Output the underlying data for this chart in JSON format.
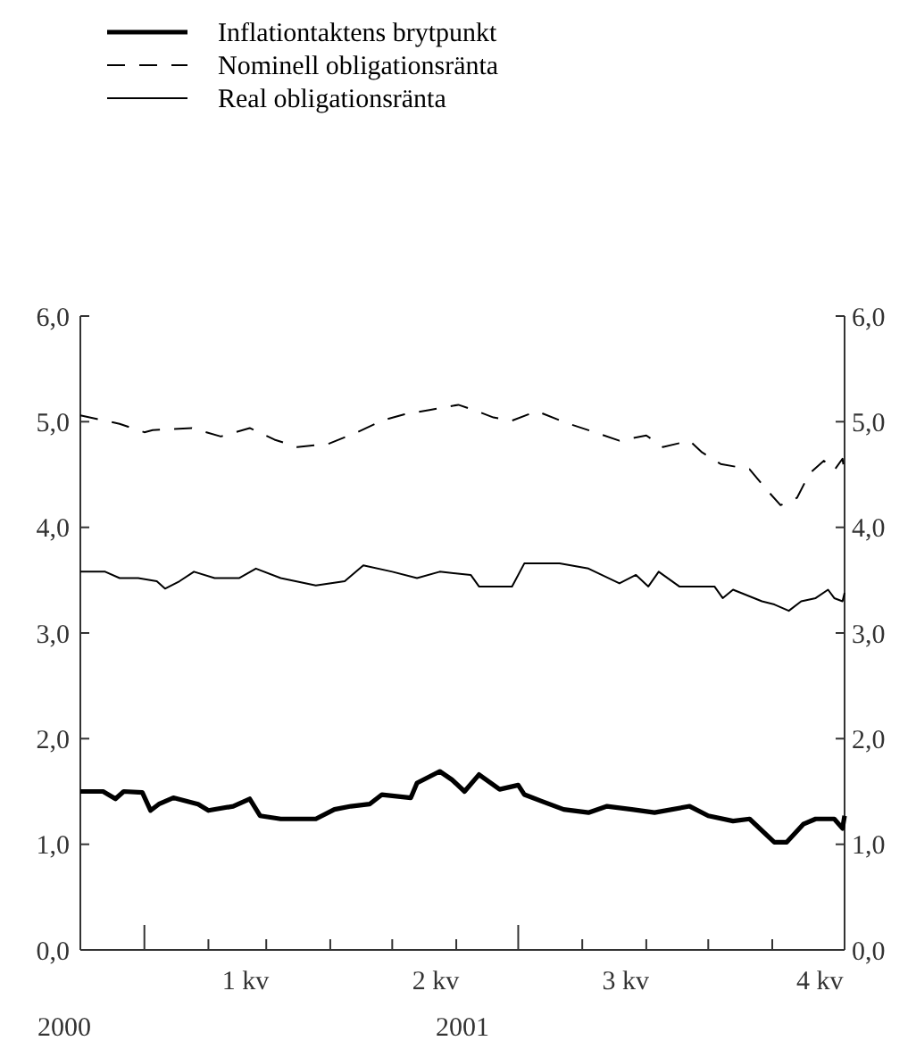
{
  "chart_data": {
    "type": "line",
    "legend": "top left",
    "ylim": [
      0,
      6
    ],
    "yticks": [
      {
        "value": 0,
        "label": "0,0"
      },
      {
        "value": 1,
        "label": "1,0"
      },
      {
        "value": 2,
        "label": "2,0"
      },
      {
        "value": 3,
        "label": "3,0"
      },
      {
        "value": 4,
        "label": "4,0"
      },
      {
        "value": 5,
        "label": "5,0"
      },
      {
        "value": 6,
        "label": "6,0"
      }
    ],
    "y2lim": [
      0,
      6
    ],
    "y2ticks": [
      {
        "value": 0,
        "label": "0,0"
      },
      {
        "value": 1,
        "label": "1,0"
      },
      {
        "value": 2,
        "label": "2,0"
      },
      {
        "value": 3,
        "label": "3,0"
      },
      {
        "value": 4,
        "label": "4,0"
      },
      {
        "value": 5,
        "label": "5,0"
      },
      {
        "value": 6,
        "label": "6,0"
      }
    ],
    "xlim": [
      "2000-12-01",
      "2001-12-06"
    ],
    "xticks": [
      {
        "value": "2001-01-01",
        "label": null
      },
      {
        "value": "2001-02-01",
        "label": null
      },
      {
        "value": "2001-03-01",
        "label": null
      },
      {
        "value": "2001-04-01",
        "label": null
      },
      {
        "value": "2001-05-01",
        "label": null
      },
      {
        "value": "2001-06-01",
        "label": null
      },
      {
        "value": "2001-07-01",
        "label": null
      },
      {
        "value": "2001-08-01",
        "label": null
      },
      {
        "value": "2001-09-01",
        "label": null
      },
      {
        "value": "2001-10-01",
        "label": null
      },
      {
        "value": "2001-11-01",
        "label": null
      },
      {
        "value": "2001-02-19",
        "label": "1 kv"
      },
      {
        "value": "2001-05-22",
        "label": "2 kv"
      },
      {
        "value": "2001-08-22",
        "label": "3 kv"
      },
      {
        "value": "2001-11-24",
        "label": "4 kv"
      }
    ],
    "annotations": [
      "2000",
      "2001"
    ],
    "series": [
      {
        "name": "Inflationtaktens brytpunkt",
        "color": "#000000",
        "line_style": "solid",
        "x": [
          "2000-12-01",
          "2000-12-12",
          "2000-12-18",
          "2000-12-22",
          "2000-12-31",
          "2001-01-04",
          "2001-01-08",
          "2001-01-15",
          "2001-01-27",
          "2001-02-01",
          "2001-02-13",
          "2001-02-21",
          "2001-02-26",
          "2001-03-08",
          "2001-03-25",
          "2001-04-03",
          "2001-04-11",
          "2001-04-20",
          "2001-04-26",
          "2001-05-10",
          "2001-05-13",
          "2001-05-24",
          "2001-05-30",
          "2001-06-05",
          "2001-06-12",
          "2001-06-22",
          "2001-07-01",
          "2001-07-04",
          "2001-07-12",
          "2001-07-23",
          "2001-08-04",
          "2001-08-13",
          "2001-08-25",
          "2001-09-05",
          "2001-09-22",
          "2001-10-01",
          "2001-10-13",
          "2001-10-21",
          "2001-11-02",
          "2001-11-08",
          "2001-11-16",
          "2001-11-22",
          "2001-12-01",
          "2001-12-05",
          "2001-12-06"
        ],
        "values": [
          1.5,
          1.5,
          1.43,
          1.5,
          1.49,
          1.32,
          1.38,
          1.44,
          1.38,
          1.32,
          1.36,
          1.43,
          1.27,
          1.24,
          1.24,
          1.33,
          1.36,
          1.38,
          1.47,
          1.44,
          1.58,
          1.69,
          1.61,
          1.5,
          1.66,
          1.52,
          1.56,
          1.47,
          1.41,
          1.33,
          1.3,
          1.36,
          1.33,
          1.3,
          1.36,
          1.27,
          1.22,
          1.24,
          1.02,
          1.02,
          1.19,
          1.24,
          1.24,
          1.15,
          1.27
        ]
      },
      {
        "name": "Nominell obligationsränta",
        "color": "#000000",
        "line_style": "dashed",
        "x": [
          "2000-12-01",
          "2000-12-20",
          "2001-01-01",
          "2001-01-05",
          "2001-01-24",
          "2001-02-07",
          "2001-02-21",
          "2001-03-05",
          "2001-03-16",
          "2001-03-31",
          "2001-04-14",
          "2001-04-26",
          "2001-05-07",
          "2001-05-19",
          "2001-06-02",
          "2001-06-11",
          "2001-06-19",
          "2001-06-28",
          "2001-07-10",
          "2001-07-24",
          "2001-08-07",
          "2001-08-19",
          "2001-09-01",
          "2001-09-09",
          "2001-09-22",
          "2001-09-28",
          "2001-10-07",
          "2001-10-21",
          "2001-10-30",
          "2001-11-05",
          "2001-11-13",
          "2001-11-19",
          "2001-11-26",
          "2001-12-01",
          "2001-12-05",
          "2001-12-06"
        ],
        "values": [
          5.06,
          4.98,
          4.9,
          4.92,
          4.94,
          4.86,
          4.94,
          4.83,
          4.76,
          4.79,
          4.9,
          5.01,
          5.07,
          5.11,
          5.16,
          5.1,
          5.04,
          5.01,
          5.1,
          4.99,
          4.9,
          4.82,
          4.87,
          4.76,
          4.82,
          4.71,
          4.6,
          4.55,
          4.34,
          4.21,
          4.28,
          4.51,
          4.63,
          4.54,
          4.65,
          4.51
        ]
      },
      {
        "name": "Real obligationsränta",
        "color": "#000000",
        "line_style": "solid",
        "x": [
          "2000-12-01",
          "2000-12-13",
          "2000-12-20",
          "2000-12-29",
          "2001-01-07",
          "2001-01-11",
          "2001-01-18",
          "2001-01-25",
          "2001-02-04",
          "2001-02-16",
          "2001-02-24",
          "2001-03-08",
          "2001-03-25",
          "2001-04-08",
          "2001-04-17",
          "2001-05-01",
          "2001-05-13",
          "2001-05-24",
          "2001-06-08",
          "2001-06-12",
          "2001-06-28",
          "2001-07-04",
          "2001-07-21",
          "2001-08-04",
          "2001-08-19",
          "2001-08-27",
          "2001-09-02",
          "2001-09-07",
          "2001-09-17",
          "2001-10-04",
          "2001-10-08",
          "2001-10-13",
          "2001-10-27",
          "2001-11-02",
          "2001-11-09",
          "2001-11-15",
          "2001-11-22",
          "2001-11-28",
          "2001-12-01",
          "2001-12-05",
          "2001-12-06"
        ],
        "values": [
          3.58,
          3.58,
          3.52,
          3.52,
          3.49,
          3.42,
          3.49,
          3.58,
          3.52,
          3.52,
          3.61,
          3.52,
          3.45,
          3.49,
          3.64,
          3.58,
          3.52,
          3.58,
          3.55,
          3.44,
          3.44,
          3.66,
          3.66,
          3.61,
          3.47,
          3.55,
          3.44,
          3.58,
          3.44,
          3.44,
          3.33,
          3.41,
          3.3,
          3.27,
          3.21,
          3.3,
          3.33,
          3.41,
          3.33,
          3.3,
          3.38
        ]
      }
    ]
  }
}
